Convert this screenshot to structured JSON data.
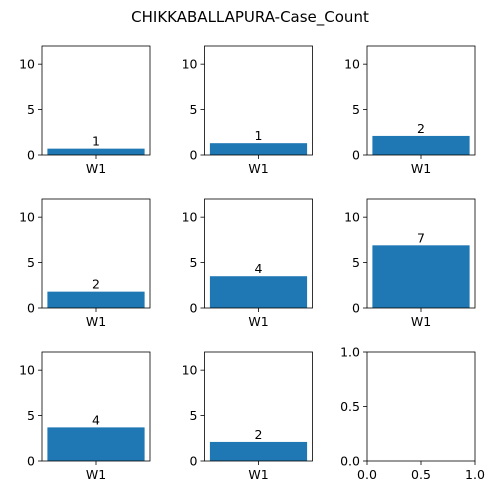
{
  "colors": {
    "bar": "#1f77b4",
    "axis": "#000000",
    "background": "#ffffff"
  },
  "chart_data": {
    "type": "bar",
    "title": "CHIKKABALLAPURA-Case_Count",
    "layout": "3x3 grid of subplots",
    "panels": [
      {
        "type": "bar",
        "categories": [
          "W1"
        ],
        "values": [
          0.7
        ],
        "data_label": "1",
        "ylim": [
          0,
          12
        ],
        "yticks": [
          "0",
          "5",
          "10"
        ]
      },
      {
        "type": "bar",
        "categories": [
          "W1"
        ],
        "values": [
          1.3
        ],
        "data_label": "1",
        "ylim": [
          0,
          12
        ],
        "yticks": [
          "0",
          "5",
          "10"
        ]
      },
      {
        "type": "bar",
        "categories": [
          "W1"
        ],
        "values": [
          2.1
        ],
        "data_label": "2",
        "ylim": [
          0,
          12
        ],
        "yticks": [
          "0",
          "5",
          "10"
        ]
      },
      {
        "type": "bar",
        "categories": [
          "W1"
        ],
        "values": [
          1.8
        ],
        "data_label": "2",
        "ylim": [
          0,
          12
        ],
        "yticks": [
          "0",
          "5",
          "10"
        ]
      },
      {
        "type": "bar",
        "categories": [
          "W1"
        ],
        "values": [
          3.5
        ],
        "data_label": "4",
        "ylim": [
          0,
          12
        ],
        "yticks": [
          "0",
          "5",
          "10"
        ]
      },
      {
        "type": "bar",
        "categories": [
          "W1"
        ],
        "values": [
          6.9
        ],
        "data_label": "7",
        "ylim": [
          0,
          12
        ],
        "yticks": [
          "0",
          "5",
          "10"
        ]
      },
      {
        "type": "bar",
        "categories": [
          "W1"
        ],
        "values": [
          3.7
        ],
        "data_label": "4",
        "ylim": [
          0,
          12
        ],
        "yticks": [
          "0",
          "5",
          "10"
        ]
      },
      {
        "type": "bar",
        "categories": [
          "W1"
        ],
        "values": [
          2.1
        ],
        "data_label": "2",
        "ylim": [
          0,
          12
        ],
        "yticks": [
          "0",
          "5",
          "10"
        ]
      },
      {
        "type": "empty",
        "xlim": [
          0,
          1
        ],
        "ylim": [
          0,
          1
        ],
        "xticks": [
          "0.0",
          "0.5",
          "1.0"
        ],
        "yticks": [
          "0.0",
          "0.5",
          "1.0"
        ]
      }
    ]
  }
}
